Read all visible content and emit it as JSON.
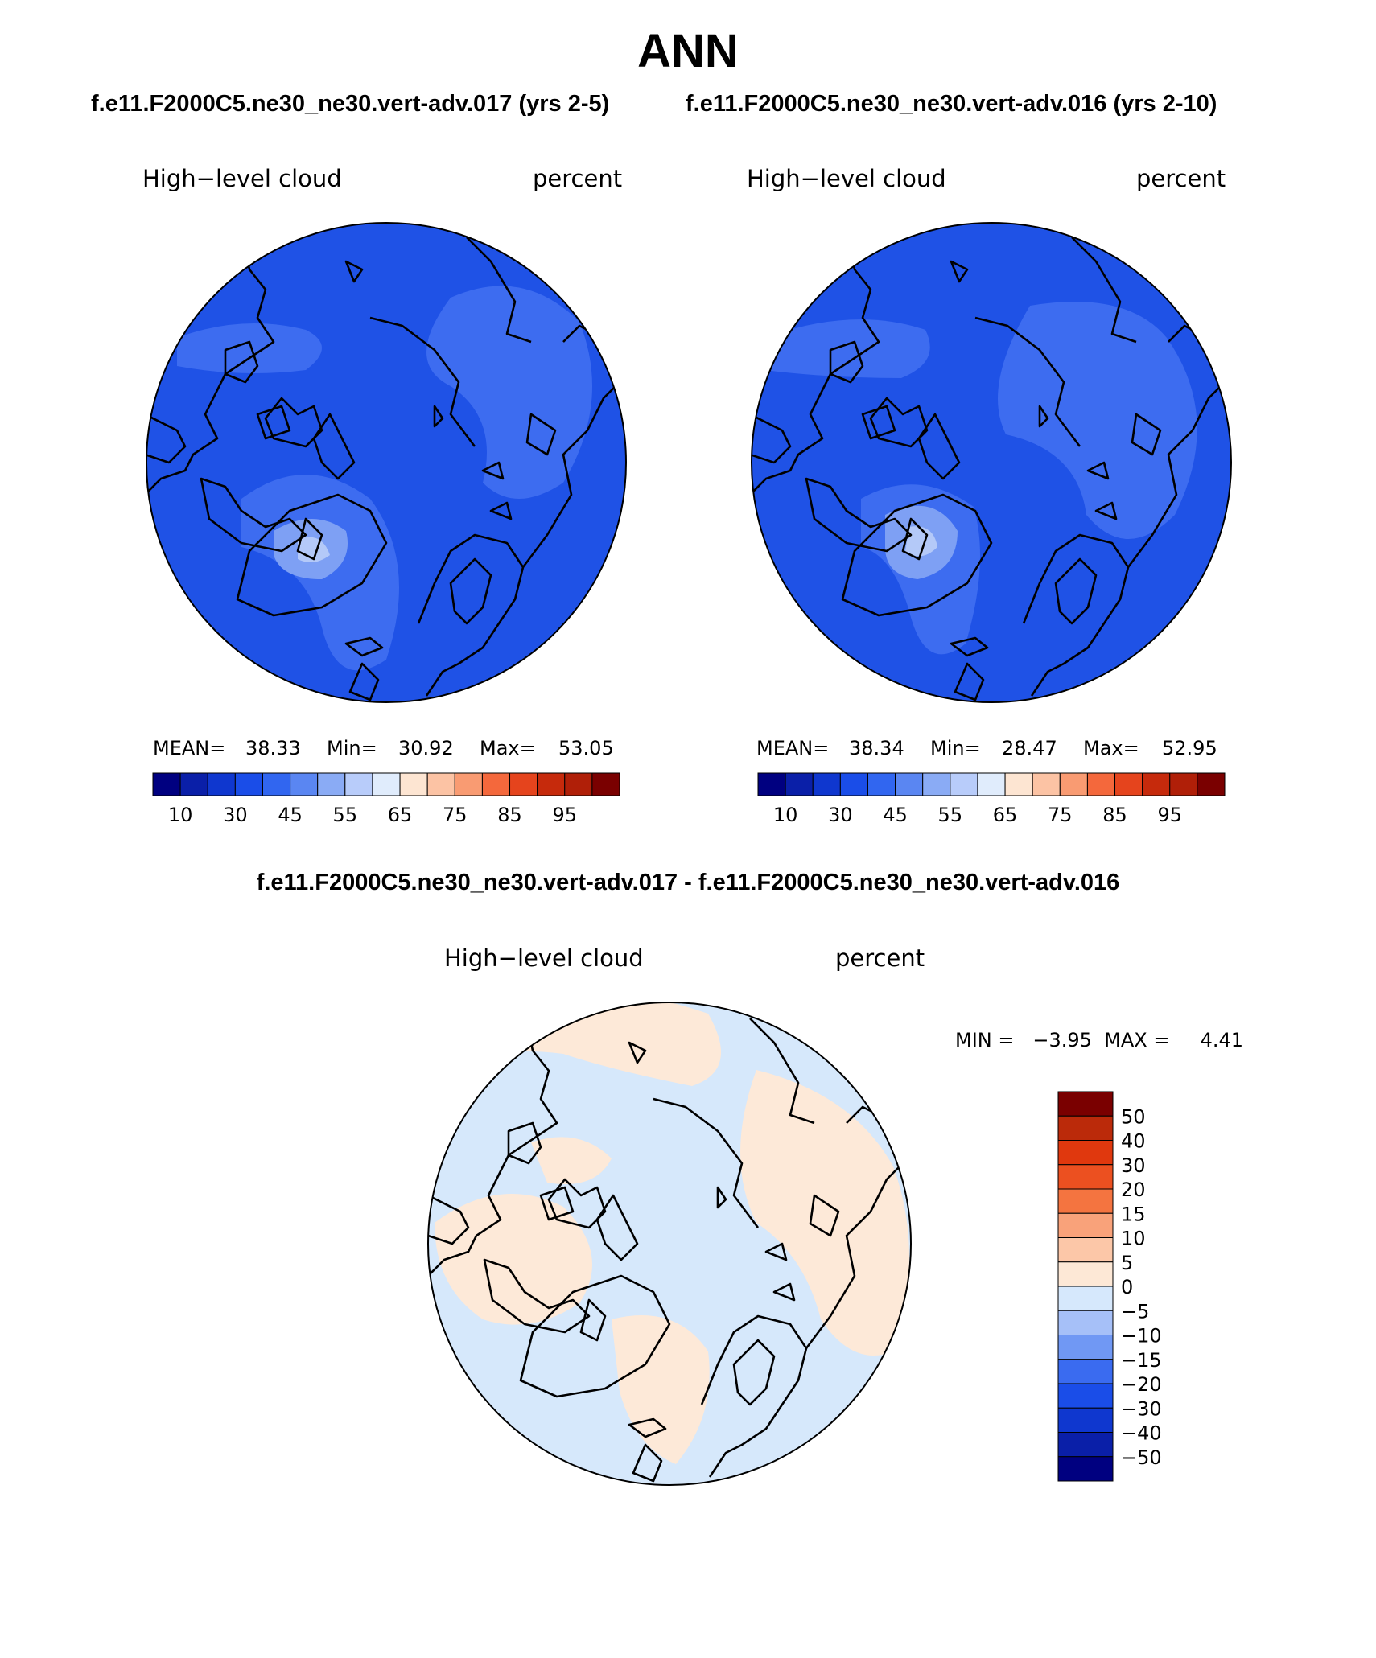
{
  "title": "ANN",
  "panels": [
    {
      "case_title": "f.e11.F2000C5.ne30_ne30.vert-adv.017 (yrs 2-5)",
      "variable": "High−level cloud",
      "units": "percent",
      "stats": {
        "mean_label": "MEAN=",
        "mean": "38.33",
        "min_label": "Min=",
        "min": "30.92",
        "max_label": "Max=",
        "max": "53.05"
      },
      "colorbar_labels": [
        "10",
        "30",
        "45",
        "55",
        "65",
        "75",
        "85",
        "95"
      ]
    },
    {
      "case_title": "f.e11.F2000C5.ne30_ne30.vert-adv.016 (yrs 2-10)",
      "variable": "High−level cloud",
      "units": "percent",
      "stats": {
        "mean_label": "MEAN=",
        "mean": "38.34",
        "min_label": "Min=",
        "min": "28.47",
        "max_label": "Max=",
        "max": "52.95"
      },
      "colorbar_labels": [
        "10",
        "30",
        "45",
        "55",
        "65",
        "75",
        "85",
        "95"
      ]
    }
  ],
  "difference": {
    "title": "f.e11.F2000C5.ne30_ne30.vert-adv.017 - f.e11.F2000C5.ne30_ne30.vert-adv.016",
    "variable": "High−level cloud",
    "units": "percent",
    "min_max": "MIN =   −3.95  MAX =     4.41",
    "colorbar_labels": [
      "50",
      "40",
      "30",
      "20",
      "15",
      "10",
      "5",
      "0",
      "−5",
      "−10",
      "−15",
      "−20",
      "−30",
      "−40",
      "−50"
    ]
  },
  "colors": {
    "abs_scale": [
      "#000080",
      "#0a1fa8",
      "#0f37cf",
      "#1a4de8",
      "#3166f0",
      "#5a86f2",
      "#8aabf5",
      "#b8ccfa",
      "#e0ecfc",
      "#fde5d2",
      "#fcc3a4",
      "#f99b72",
      "#f4683c",
      "#e5441d",
      "#c62a0c",
      "#b01f08",
      "#7a0000"
    ],
    "diff_scale": [
      "#000080",
      "#0a1fa8",
      "#0f37cf",
      "#1a4de8",
      "#3a6bf0",
      "#7098f4",
      "#a6c0f8",
      "#d6e8fc",
      "#fde8d6",
      "#fcc7a8",
      "#f9a27a",
      "#f47440",
      "#ec5020",
      "#e0380e",
      "#bb2a0a",
      "#7a0000"
    ],
    "map_base": "#1f52e6",
    "map_light1": "#3d6cf0",
    "map_light2": "#7ea0f4",
    "map_light3": "#b4c9f8",
    "diff_neg": "#d6e8fb",
    "diff_pos": "#fde9d8"
  }
}
